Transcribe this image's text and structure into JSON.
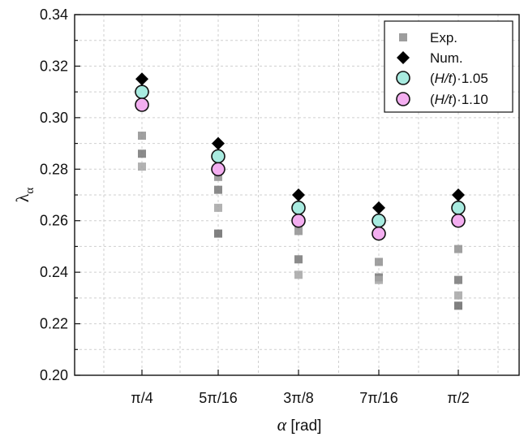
{
  "chart_data": {
    "type": "scatter",
    "categories": [
      "π/4",
      "5π/16",
      "3π/8",
      "7π/16",
      "π/2"
    ],
    "title": "",
    "xlabel_symbol": "α",
    "xlabel_unit": "[rad]",
    "ylabel_symbol": "λ",
    "ylabel_subscript": "α",
    "ylim": [
      0.2,
      0.34
    ],
    "yticks": [
      "0.20",
      "0.22",
      "0.24",
      "0.26",
      "0.28",
      "0.30",
      "0.32",
      "0.34"
    ],
    "grid": true,
    "legend_position": "top-right",
    "series": [
      {
        "name": "Exp.",
        "marker": "square",
        "color": "#8c8c8c",
        "points": [
          {
            "category": "π/4",
            "values": [
              0.293,
              0.286,
              0.281
            ]
          },
          {
            "category": "5π/16",
            "values": [
              0.277,
              0.272,
              0.265,
              0.255
            ]
          },
          {
            "category": "3π/8",
            "values": [
              0.256,
              0.245,
              0.239
            ]
          },
          {
            "category": "7π/16",
            "values": [
              0.244,
              0.238,
              0.237
            ]
          },
          {
            "category": "π/2",
            "values": [
              0.249,
              0.237,
              0.231,
              0.227
            ]
          }
        ]
      },
      {
        "name": "Num.",
        "marker": "diamond",
        "color": "#000000",
        "values": [
          0.315,
          0.29,
          0.27,
          0.265,
          0.27
        ]
      },
      {
        "name": "(H/t)·1.05",
        "marker": "circle",
        "color": "#a8ebe0",
        "values": [
          0.31,
          0.285,
          0.265,
          0.26,
          0.265
        ]
      },
      {
        "name": "(H/t)·1.10",
        "marker": "circle",
        "color": "#f3aef0",
        "values": [
          0.305,
          0.28,
          0.26,
          0.255,
          0.26
        ]
      }
    ],
    "legend": [
      {
        "label": "Exp.",
        "marker": "square"
      },
      {
        "label": "Num.",
        "marker": "diamond"
      },
      {
        "prefix": "(",
        "italic": "H/t",
        "suffix": ")·1.05",
        "marker": "circle-cyan"
      },
      {
        "prefix": "(",
        "italic": "H/t",
        "suffix": ")·1.10",
        "marker": "circle-pink"
      }
    ]
  }
}
